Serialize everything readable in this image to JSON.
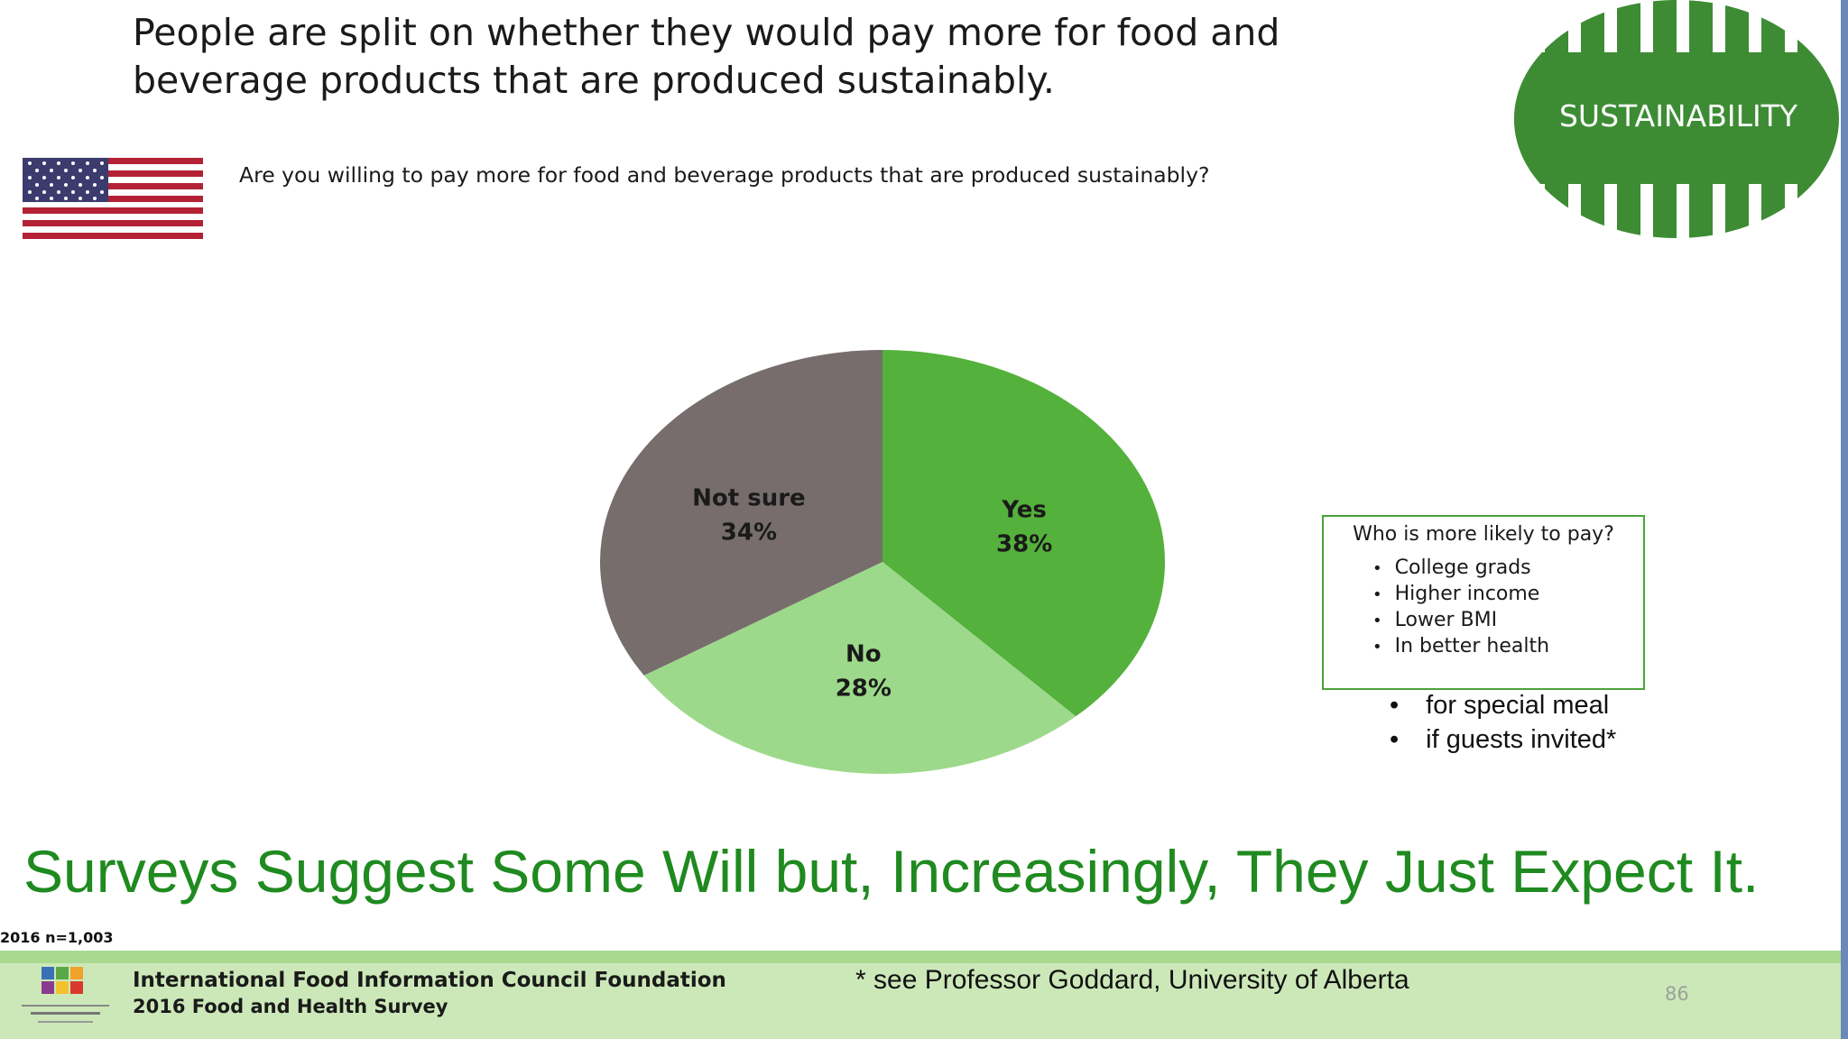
{
  "slide": {
    "title": "People are split on whether they would pay more for food and beverage products that are produced sustainably.",
    "question": "Are you willing to pay more for food and beverage products that are produced sustainably?",
    "badge_text": "SUSTAINABILITY",
    "headline": "Surveys Suggest Some Will but, Increasingly, They Just Expect It.",
    "sample": "2016 n=1,003"
  },
  "chart_data": {
    "type": "pie",
    "title": "",
    "slices": [
      {
        "label": "Yes",
        "value": 38,
        "display": "38%",
        "color": "#54b13c"
      },
      {
        "label": "No",
        "value": 28,
        "display": "28%",
        "color": "#9dd98a"
      },
      {
        "label": "Not sure",
        "value": 34,
        "display": "34%",
        "color": "#776d6d"
      }
    ]
  },
  "callout": {
    "title": "Who is more likely to pay?",
    "items": [
      "College grads",
      "Higher income",
      "Lower BMI",
      "In better health"
    ]
  },
  "extra_items": [
    "for special meal",
    "if guests invited*"
  ],
  "footer": {
    "org": "International Food Information Council Foundation",
    "survey": "2016 Food and Health Survey",
    "note": "* see Professor Goddard, University of Alberta",
    "page_number": "86"
  },
  "colors": {
    "accent_green": "#1f8a1f",
    "badge_green": "#3d8c34"
  }
}
